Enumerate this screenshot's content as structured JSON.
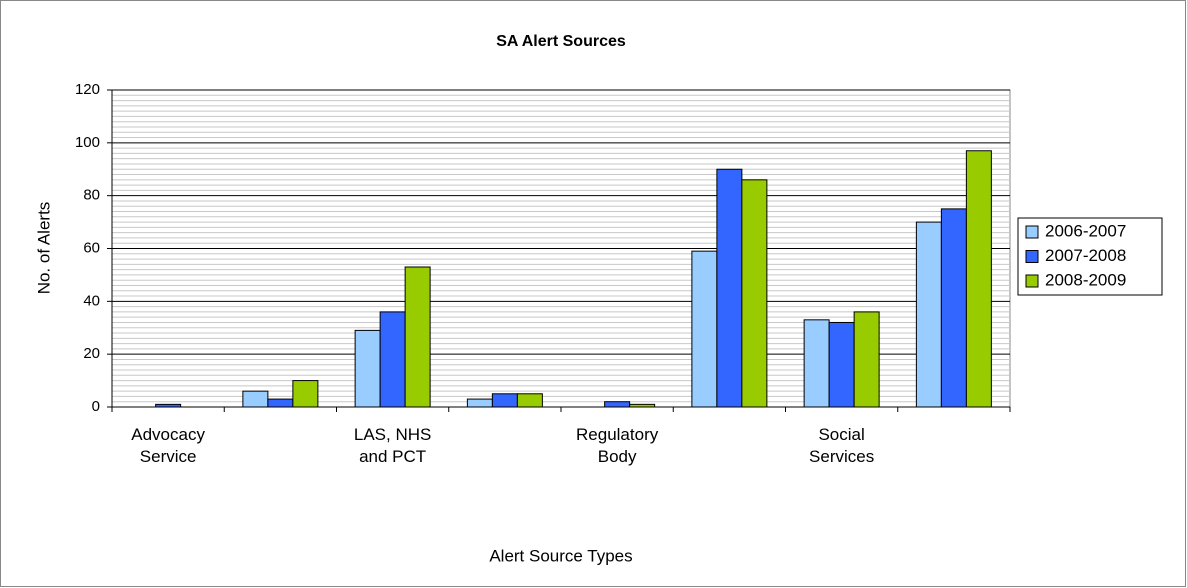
{
  "chart_data": {
    "type": "bar",
    "title": "SA Alert Sources",
    "x_label": "Alert Source Types",
    "y_label": "No. of Alerts",
    "categories": [
      "Advocacy\nService",
      null,
      "LAS, NHS\nand PCT",
      null,
      "Regulatory\nBody",
      null,
      "Social\nServices",
      null
    ],
    "series": [
      {
        "name": "2006-2007",
        "color": "#99ccff",
        "values": [
          0,
          6,
          29,
          3,
          0,
          59,
          33,
          70
        ]
      },
      {
        "name": "2007-2008",
        "color": "#3366ff",
        "values": [
          1,
          3,
          36,
          5,
          2,
          90,
          32,
          75
        ]
      },
      {
        "name": "2008-2009",
        "color": "#99cc00",
        "values": [
          0,
          10,
          53,
          5,
          1,
          86,
          36,
          97
        ]
      }
    ],
    "ylim": [
      0,
      120
    ],
    "yticks": [
      0,
      20,
      40,
      60,
      80,
      100,
      120
    ],
    "grid": true,
    "minor_grid": true,
    "legend": "right"
  }
}
